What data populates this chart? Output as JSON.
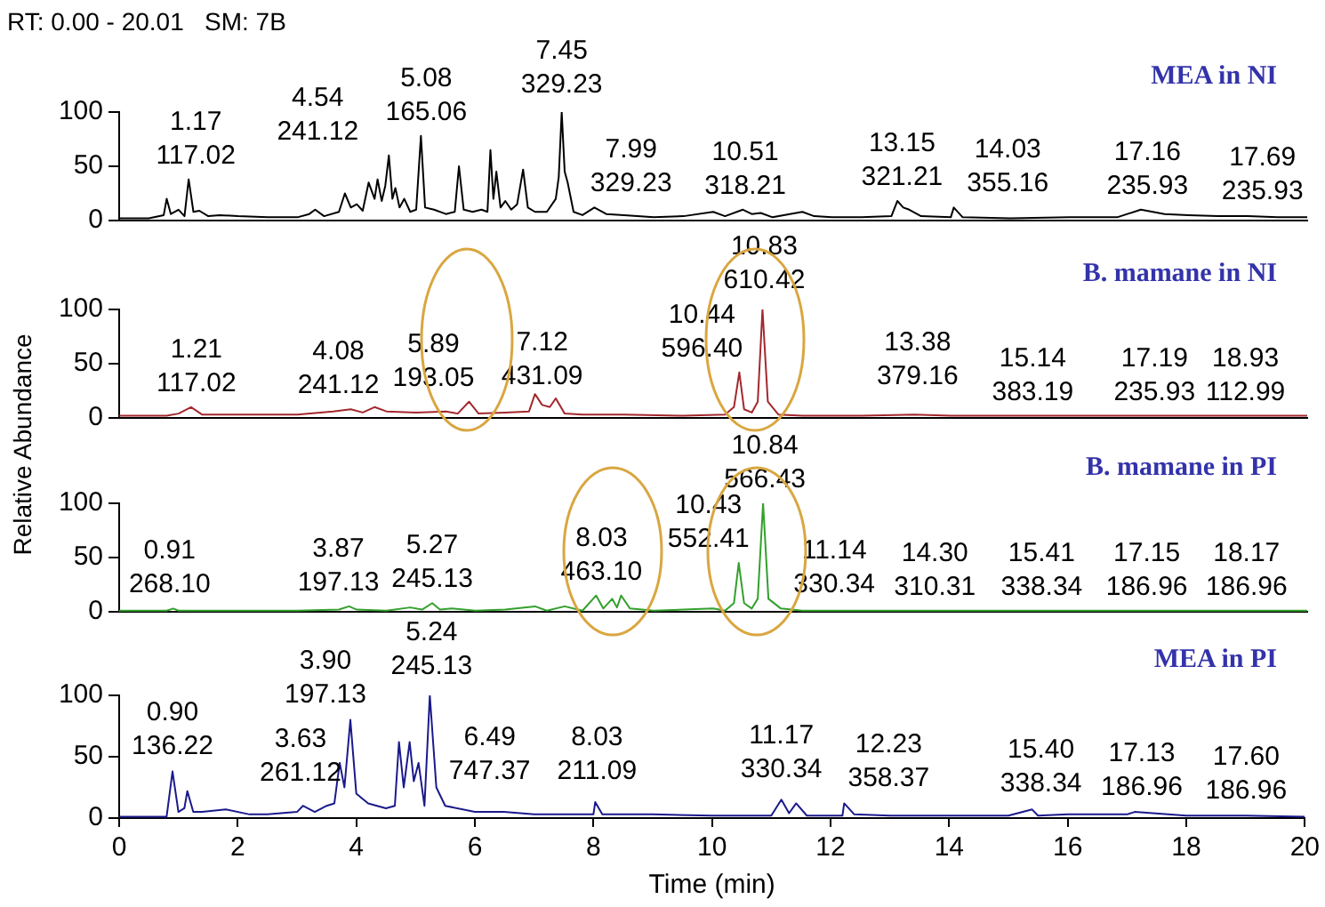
{
  "chart_data": [
    {
      "type": "line",
      "title": "MEA in NI",
      "xlim": [
        0,
        20
      ],
      "xticks": [
        0,
        2,
        4,
        6,
        8,
        10,
        12,
        14,
        16,
        18,
        20
      ],
      "ylim": [
        0,
        100
      ],
      "yticks": [
        0,
        50,
        100
      ],
      "grid": false,
      "legend": false,
      "marker": "none",
      "tick_labels": "y",
      "x": [
        0,
        0.5,
        0.75,
        0.8,
        0.87,
        1.0,
        1.1,
        1.17,
        1.25,
        1.35,
        1.5,
        1.7,
        2.0,
        2.5,
        3.0,
        3.2,
        3.3,
        3.45,
        3.7,
        3.8,
        3.9,
        4.0,
        4.1,
        4.2,
        4.3,
        4.35,
        4.42,
        4.48,
        4.54,
        4.6,
        4.65,
        4.72,
        4.8,
        4.9,
        5.0,
        5.08,
        5.15,
        5.3,
        5.5,
        5.65,
        5.72,
        5.8,
        5.95,
        6.1,
        6.2,
        6.25,
        6.3,
        6.35,
        6.42,
        6.5,
        6.6,
        6.7,
        6.8,
        6.88,
        7.0,
        7.2,
        7.35,
        7.4,
        7.45,
        7.5,
        7.55,
        7.65,
        7.8,
        8.0,
        8.2,
        8.5,
        9.0,
        9.5,
        10.0,
        10.2,
        10.5,
        10.65,
        10.8,
        11.0,
        11.5,
        11.7,
        12.0,
        12.5,
        13.0,
        13.1,
        13.2,
        13.3,
        13.5,
        14.0,
        14.05,
        14.2,
        15.0,
        16.0,
        16.8,
        17.2,
        17.6,
        18.0,
        18.5,
        19.0,
        19.5,
        20.0
      ],
      "series": [
        {
          "color": "#000000",
          "values": [
            2,
            2,
            5,
            20,
            6,
            10,
            4,
            38,
            8,
            9,
            4,
            5,
            4,
            3,
            3,
            6,
            10,
            4,
            8,
            25,
            12,
            15,
            9,
            35,
            20,
            38,
            18,
            32,
            60,
            20,
            30,
            12,
            20,
            8,
            10,
            78,
            12,
            10,
            6,
            8,
            50,
            10,
            8,
            10,
            8,
            65,
            20,
            45,
            12,
            18,
            10,
            15,
            47,
            12,
            8,
            8,
            20,
            40,
            100,
            45,
            35,
            8,
            5,
            12,
            6,
            5,
            3,
            4,
            8,
            4,
            10,
            6,
            7,
            3,
            8,
            4,
            3,
            3,
            4,
            18,
            12,
            10,
            4,
            3,
            12,
            3,
            2,
            3,
            3,
            10,
            6,
            5,
            4,
            4,
            3,
            3
          ]
        }
      ],
      "annotations": [
        "RT: 0.00 - 20.01   SM: 7B",
        {
          "text": "1.17\n117.02",
          "x": 1.17,
          "y": 38
        },
        {
          "text": "4.54\n241.12",
          "x": 4.54,
          "y": 60
        },
        {
          "text": "5.08\n165.06",
          "x": 5.08,
          "y": 78
        },
        {
          "text": "7.45\n329.23",
          "x": 7.45,
          "y": 100
        },
        {
          "text": "7.99\n329.23",
          "x": 7.99,
          "y": 12
        },
        {
          "text": "10.51\n318.21",
          "x": 10.51,
          "y": 10
        },
        {
          "text": "13.15\n321.21",
          "x": 13.15,
          "y": 18
        },
        {
          "text": "14.03\n355.16",
          "x": 14.03,
          "y": 12
        },
        {
          "text": "17.16\n235.93",
          "x": 17.16,
          "y": 10
        },
        {
          "text": "17.69\n235.93",
          "x": 17.69,
          "y": 5
        }
      ]
    },
    {
      "type": "line",
      "title": "B. mamane in NI",
      "ylabel": "Relative Abundance",
      "xlim": [
        0,
        20
      ],
      "xticks": [
        0,
        2,
        4,
        6,
        8,
        10,
        12,
        14,
        16,
        18,
        20
      ],
      "ylim": [
        0,
        100
      ],
      "yticks": [
        0,
        50,
        100
      ],
      "grid": false,
      "legend": false,
      "marker": "none",
      "tick_labels": "y",
      "x": [
        0,
        0.8,
        1.0,
        1.21,
        1.4,
        2.0,
        3.0,
        3.6,
        3.9,
        4.1,
        4.3,
        4.5,
        5.0,
        5.5,
        5.7,
        5.89,
        6.05,
        6.5,
        6.9,
        7.0,
        7.12,
        7.25,
        7.35,
        7.5,
        7.8,
        8.5,
        9.5,
        10.2,
        10.35,
        10.44,
        10.52,
        10.65,
        10.75,
        10.83,
        10.92,
        11.1,
        11.5,
        12.5,
        13.38,
        14.0,
        15.14,
        16.0,
        17.19,
        18.0,
        18.93,
        20.0
      ],
      "series": [
        {
          "color": "#a3282e",
          "values": [
            2,
            2,
            4,
            10,
            3,
            3,
            3,
            6,
            8,
            5,
            10,
            6,
            5,
            6,
            4,
            15,
            4,
            5,
            6,
            22,
            12,
            10,
            18,
            4,
            3,
            3,
            2,
            3,
            10,
            42,
            8,
            5,
            15,
            100,
            15,
            3,
            2,
            2,
            3,
            2,
            2,
            2,
            2,
            2,
            2,
            2
          ]
        }
      ],
      "annotations": [
        {
          "text": "1.21\n117.02",
          "x": 1.21,
          "y": 10
        },
        {
          "text": "4.08\n241.12",
          "x": 4.08,
          "y": 8
        },
        {
          "text": "5.89\n193.05",
          "x": 5.89,
          "y": 15
        },
        {
          "text": "7.12\n431.09",
          "x": 7.12,
          "y": 12
        },
        {
          "text": "10.44\n596.40",
          "x": 10.44,
          "y": 42
        },
        {
          "text": "10.83\n610.42",
          "x": 10.83,
          "y": 100
        },
        {
          "text": "13.38\n379.16",
          "x": 13.38,
          "y": 3
        },
        {
          "text": "15.14\n383.19",
          "x": 15.14,
          "y": 2
        },
        {
          "text": "17.19\n235.93",
          "x": 17.19,
          "y": 2
        },
        {
          "text": "18.93\n112.99",
          "x": 18.93,
          "y": 2
        }
      ]
    },
    {
      "type": "line",
      "title": "B. mamane in PI",
      "xlim": [
        0,
        20
      ],
      "xticks": [
        0,
        2,
        4,
        6,
        8,
        10,
        12,
        14,
        16,
        18,
        20
      ],
      "ylim": [
        0,
        100
      ],
      "yticks": [
        0,
        50,
        100
      ],
      "grid": false,
      "legend": false,
      "marker": "none",
      "tick_labels": "y",
      "x": [
        0,
        0.8,
        0.91,
        1.0,
        2.0,
        3.0,
        3.7,
        3.87,
        4.0,
        4.5,
        4.9,
        5.1,
        5.27,
        5.4,
        5.6,
        6.0,
        6.5,
        7.0,
        7.2,
        7.5,
        7.8,
        8.03,
        8.15,
        8.3,
        8.38,
        8.45,
        8.6,
        9.0,
        10.0,
        10.2,
        10.35,
        10.43,
        10.52,
        10.65,
        10.75,
        10.84,
        10.93,
        11.14,
        11.5,
        12.0,
        14.3,
        15.41,
        17.15,
        18.17,
        20.0
      ],
      "series": [
        {
          "color": "#33a02c",
          "values": [
            1,
            1,
            3,
            1,
            1,
            1,
            2,
            5,
            2,
            1,
            4,
            2,
            8,
            2,
            3,
            1,
            2,
            5,
            1,
            5,
            1,
            15,
            3,
            12,
            4,
            15,
            3,
            1,
            3,
            1,
            8,
            45,
            8,
            3,
            12,
            100,
            12,
            3,
            1,
            1,
            1,
            1,
            1,
            1,
            1
          ]
        }
      ],
      "annotations": [
        {
          "text": "0.91\n268.10",
          "x": 0.91,
          "y": 3
        },
        {
          "text": "3.87\n197.13",
          "x": 3.87,
          "y": 5
        },
        {
          "text": "5.27\n245.13",
          "x": 5.27,
          "y": 8
        },
        {
          "text": "8.03\n463.10",
          "x": 8.03,
          "y": 15
        },
        {
          "text": "10.43\n552.41",
          "x": 10.43,
          "y": 45
        },
        {
          "text": "10.84\n566.43",
          "x": 10.84,
          "y": 100
        },
        {
          "text": "11.14\n330.34",
          "x": 11.14,
          "y": 3
        },
        {
          "text": "14.30\n310.31",
          "x": 14.3,
          "y": 1
        },
        {
          "text": "15.41\n338.34",
          "x": 15.41,
          "y": 1
        },
        {
          "text": "17.15\n186.96",
          "x": 17.15,
          "y": 1
        },
        {
          "text": "18.17\n186.96",
          "x": 18.17,
          "y": 1
        }
      ]
    },
    {
      "type": "line",
      "title": "MEA in PI",
      "xlabel": "Time (min)",
      "xlim": [
        0,
        20
      ],
      "xticks": [
        0,
        2,
        4,
        6,
        8,
        10,
        12,
        14,
        16,
        18,
        20
      ],
      "ylim": [
        0,
        100
      ],
      "yticks": [
        0,
        50,
        100
      ],
      "grid": false,
      "legend": false,
      "marker": "none",
      "x": [
        0,
        0.8,
        0.9,
        1.0,
        1.1,
        1.15,
        1.25,
        1.4,
        1.8,
        2.2,
        2.5,
        3.0,
        3.1,
        3.3,
        3.5,
        3.63,
        3.72,
        3.8,
        3.9,
        4.0,
        4.2,
        4.5,
        4.65,
        4.72,
        4.8,
        4.9,
        4.97,
        5.05,
        5.15,
        5.24,
        5.35,
        5.5,
        6.0,
        6.49,
        7.0,
        8.0,
        8.03,
        8.15,
        9.0,
        10.0,
        11.0,
        11.17,
        11.3,
        11.42,
        11.6,
        12.2,
        12.23,
        12.4,
        13.0,
        15.0,
        15.4,
        15.5,
        16.0,
        17.0,
        17.13,
        18.0,
        19.0,
        20.0
      ],
      "series": [
        {
          "color": "#1a1a8c",
          "values": [
            1,
            1,
            38,
            5,
            8,
            22,
            5,
            5,
            7,
            3,
            3,
            5,
            10,
            5,
            10,
            12,
            45,
            25,
            80,
            20,
            12,
            8,
            10,
            62,
            25,
            62,
            30,
            45,
            10,
            100,
            25,
            10,
            5,
            5,
            3,
            3,
            13,
            3,
            3,
            2,
            2,
            15,
            4,
            12,
            2,
            2,
            12,
            3,
            2,
            2,
            7,
            2,
            3,
            3,
            5,
            2,
            2,
            1
          ]
        }
      ],
      "annotations": [
        {
          "text": "0.90\n136.22",
          "x": 0.9,
          "y": 38
        },
        {
          "text": "3.63\n261.12",
          "x": 3.63,
          "y": 12
        },
        {
          "text": "3.90\n197.13",
          "x": 3.9,
          "y": 80
        },
        {
          "text": "5.24\n245.13",
          "x": 5.24,
          "y": 100
        },
        {
          "text": "6.49\n747.37",
          "x": 6.49,
          "y": 5
        },
        {
          "text": "8.03\n211.09",
          "x": 8.03,
          "y": 13
        },
        {
          "text": "11.17\n330.34",
          "x": 11.17,
          "y": 15
        },
        {
          "text": "12.23\n358.37",
          "x": 12.23,
          "y": 12
        },
        {
          "text": "15.40\n338.34",
          "x": 15.4,
          "y": 7
        },
        {
          "text": "17.13\n186.96",
          "x": 17.13,
          "y": 5
        },
        {
          "text": "17.60\n186.96",
          "x": 17.6,
          "y": 2
        }
      ]
    }
  ]
}
